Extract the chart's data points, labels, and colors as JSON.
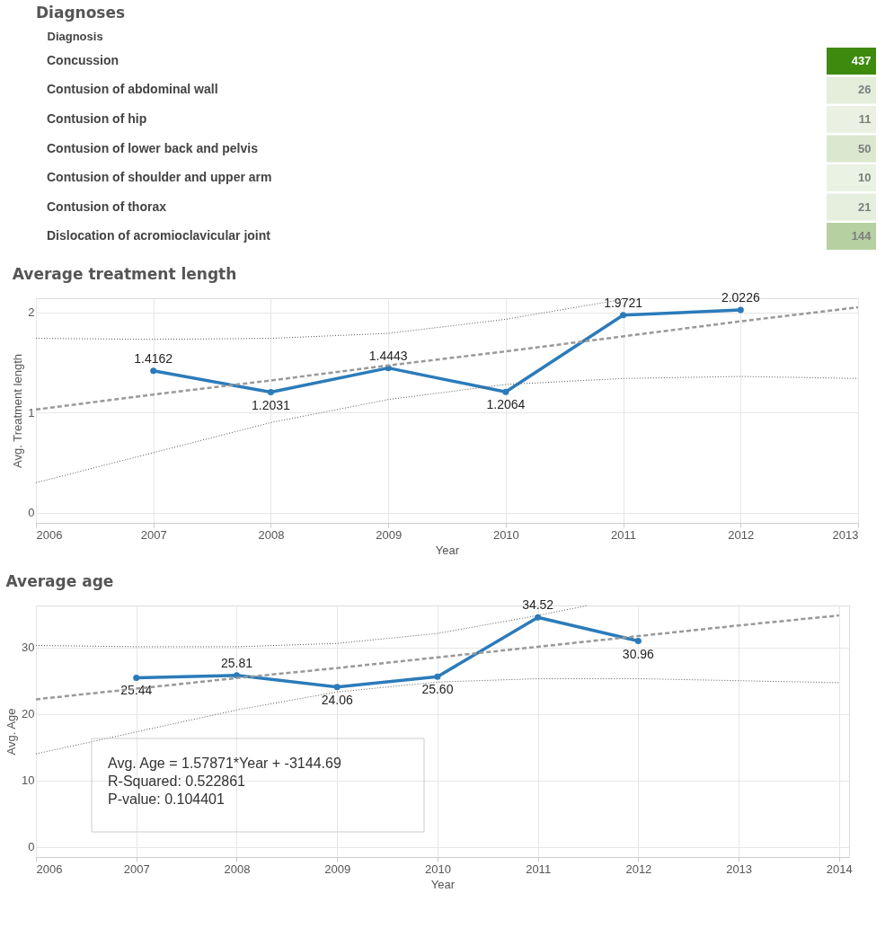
{
  "chart_data": [
    {
      "type": "heatmap",
      "title": "Diagnoses",
      "ylabel": "Diagnosis",
      "categories": [
        null
      ],
      "y_categories": [
        "Concussion",
        "Contusion of abdominal wall",
        "Contusion of hip",
        "Contusion of lower back and pelvis",
        "Contusion of shoulder and upper arm",
        "Contusion of thorax",
        "Dislocation of acromioclavicular joint"
      ],
      "cells": [
        [
          437
        ],
        [
          26
        ],
        [
          11
        ],
        [
          50
        ],
        [
          10
        ],
        [
          21
        ],
        [
          144
        ]
      ],
      "color": "#3e8a0e",
      "data_labels": true,
      "tick_labels": "y"
    },
    {
      "type": "line",
      "title": "Average treatment length",
      "xlabel": "Year",
      "ylabel": "Avg. Treatment length",
      "x": [
        2007,
        2008,
        2009,
        2010,
        2011,
        2012
      ],
      "xlim": [
        2006,
        2013
      ],
      "xticks": [
        2006,
        2007,
        2008,
        2009,
        2010,
        2011,
        2012,
        2013
      ],
      "ylim": [
        -0.1,
        2.14
      ],
      "yticks": [
        0,
        1,
        2
      ],
      "grid": true,
      "series": [
        {
          "color": "#2b7bba",
          "marker": "circle",
          "values": [
            1.4162,
            1.2031,
            1.4443,
            1.2064,
            1.9721,
            2.0226
          ],
          "value_labels": [
            "1.4162",
            "1.2031",
            "1.4443",
            "1.2064",
            "1.9721",
            "2.0226"
          ]
        },
        {
          "type": "line",
          "line_style": "dashed",
          "color": "#999999",
          "x": [
            2006,
            2007,
            2008,
            2009,
            2010,
            2011,
            2012,
            2013
          ],
          "values": [
            1.03,
            1.18,
            1.32,
            1.47,
            1.61,
            1.76,
            1.91,
            2.05
          ]
        },
        {
          "type": "line",
          "line_style": "dotted",
          "color": "#555555",
          "x": [
            2006,
            2007,
            2008,
            2009,
            2010,
            2011,
            2012,
            2013
          ],
          "values": [
            0.3,
            0.6,
            0.9,
            1.13,
            1.28,
            1.34,
            1.36,
            1.34
          ]
        },
        {
          "type": "line",
          "line_style": "dotted",
          "color": "#555555",
          "x": [
            2006,
            2007,
            2008,
            2009,
            2010,
            2011
          ],
          "values": [
            1.74,
            1.73,
            1.74,
            1.79,
            1.93,
            2.13
          ]
        }
      ]
    },
    {
      "type": "line",
      "title": "Average age",
      "xlabel": "Year",
      "ylabel": "Avg. Age",
      "x": [
        2007,
        2008,
        2009,
        2010,
        2011,
        2012
      ],
      "xlim": [
        2006,
        2014.1
      ],
      "xticks": [
        2006,
        2007,
        2008,
        2009,
        2010,
        2011,
        2012,
        2013,
        2014
      ],
      "ylim": [
        -1.5,
        36.3
      ],
      "yticks": [
        0,
        10,
        20,
        30
      ],
      "grid": true,
      "annotations": [
        "Avg. Age = 1.57871*Year + -3144.69",
        "R-Squared: 0.522861",
        "P-value: 0.104401"
      ],
      "series": [
        {
          "color": "#2b7bba",
          "marker": "circle",
          "values": [
            25.44,
            25.81,
            24.06,
            25.6,
            34.52,
            30.96
          ],
          "value_labels": [
            "25.44",
            "25.81",
            "24.06",
            "25.60",
            "34.52",
            "30.96"
          ]
        },
        {
          "type": "line",
          "line_style": "dashed",
          "color": "#999999",
          "x": [
            2006,
            2007,
            2008,
            2009,
            2010,
            2011,
            2012,
            2013,
            2014
          ],
          "values": [
            22.2,
            23.8,
            25.4,
            26.9,
            28.5,
            30.1,
            31.7,
            33.3,
            34.8
          ]
        },
        {
          "type": "line",
          "line_style": "dotted",
          "color": "#555555",
          "x": [
            2006,
            2007,
            2008,
            2009,
            2010,
            2011,
            2012,
            2013,
            2014
          ],
          "values": [
            14.0,
            17.3,
            20.6,
            23.3,
            24.8,
            25.3,
            25.3,
            25.0,
            24.7
          ]
        },
        {
          "type": "line",
          "line_style": "dotted",
          "color": "#555555",
          "x": [
            2006,
            2007,
            2008,
            2009,
            2010,
            2011,
            2011.5
          ],
          "values": [
            30.3,
            30.1,
            30.1,
            30.6,
            32.1,
            34.8,
            36.3
          ]
        }
      ]
    }
  ]
}
